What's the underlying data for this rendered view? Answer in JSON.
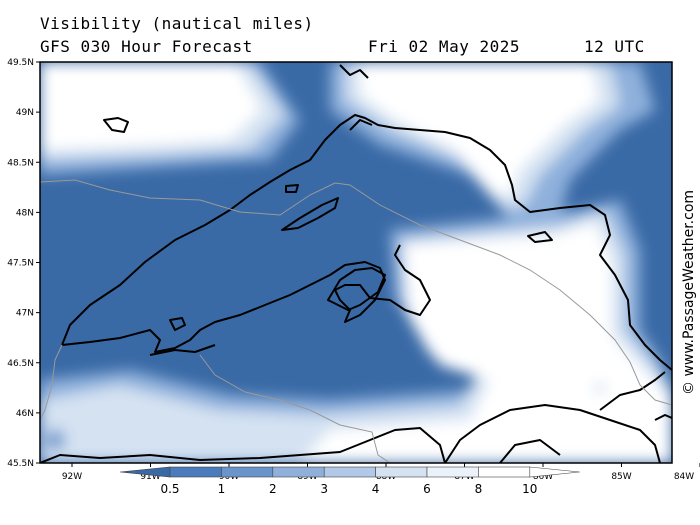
{
  "header": {
    "parameter": "Visibility (nautical miles)",
    "forecast": "GFS 030 Hour Forecast",
    "date": "Fri 02 May 2025",
    "time": "12 UTC"
  },
  "map": {
    "lat_labels": [
      "49.5N",
      "49N",
      "48.5N",
      "48N",
      "47.5N",
      "47N",
      "46.5N",
      "46N",
      "45.5N"
    ],
    "lon_labels": [
      "92W",
      "91W",
      "90W",
      "89W",
      "88W",
      "87W",
      "86W",
      "85W",
      "84W"
    ],
    "extent": {
      "lon_min": -92.5,
      "lon_max": -84,
      "lat_min": 45.5,
      "lat_max": 49.5
    }
  },
  "legend": {
    "labels": [
      "0.5",
      "1",
      "2",
      "3",
      "4",
      "6",
      "8",
      "10"
    ],
    "colors": [
      "#3a6aa6",
      "#4a7cbd",
      "#6a95cc",
      "#8eb0db",
      "#b1c9e6",
      "#d4e2f2",
      "#ecf2f9",
      "#ffffff"
    ]
  },
  "credit": "© www.PassageWeather.com"
}
